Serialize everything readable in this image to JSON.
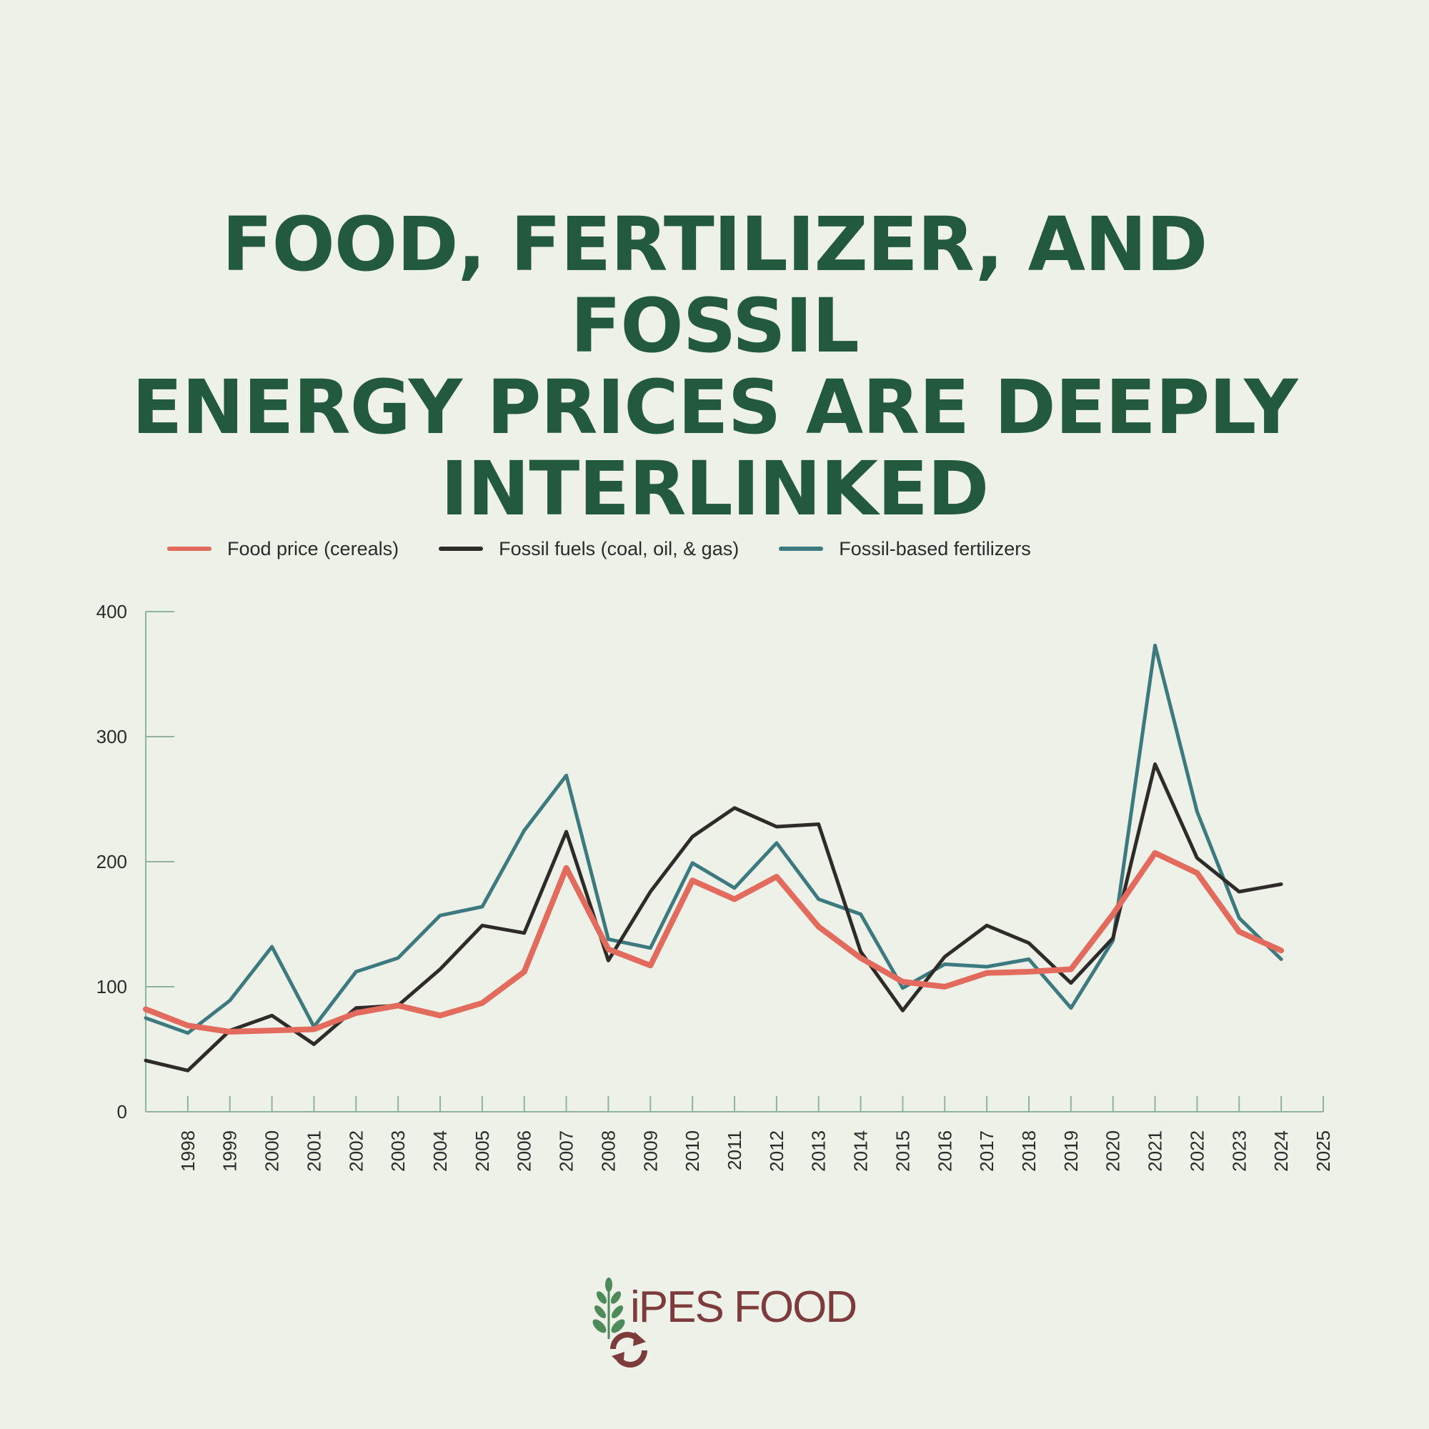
{
  "title_lines": [
    "FOOD, FERTILIZER, AND FOSSIL",
    "ENERGY PRICES ARE DEEPLY",
    "INTERLINKED"
  ],
  "logo_text": "iPES FOOD",
  "chart_data": {
    "type": "line",
    "title": "FOOD, FERTILIZER, AND FOSSIL ENERGY PRICES ARE DEEPLY INTERLINKED",
    "xlabel": "",
    "ylabel": "",
    "ylim": [
      0,
      400
    ],
    "y_ticks": [
      0,
      100,
      200,
      300,
      400
    ],
    "x_ticks": [
      "1998",
      "1999",
      "2000",
      "2001",
      "2002",
      "2003",
      "2004",
      "2005",
      "2006",
      "2007",
      "2008",
      "2009",
      "2010",
      "2011",
      "2012",
      "2013",
      "2014",
      "2015",
      "2016",
      "2017",
      "2018",
      "2019",
      "2020",
      "2021",
      "2022",
      "2023",
      "2024",
      "2025"
    ],
    "x_range": [
      1997,
      2025
    ],
    "grid": false,
    "legend_position": "top-left",
    "series": [
      {
        "name": "Food price (cereals)",
        "color": "#e36b5e",
        "points": [
          [
            1997,
            82
          ],
          [
            1998,
            69
          ],
          [
            1999,
            64
          ],
          [
            2000,
            65
          ],
          [
            2001,
            66
          ],
          [
            2002,
            79
          ],
          [
            2003,
            85
          ],
          [
            2004,
            77
          ],
          [
            2005,
            87
          ],
          [
            2006,
            112
          ],
          [
            2007,
            195
          ],
          [
            2008,
            130
          ],
          [
            2009,
            117
          ],
          [
            2010,
            185
          ],
          [
            2011,
            170
          ],
          [
            2012,
            188
          ],
          [
            2013,
            148
          ],
          [
            2014,
            123
          ],
          [
            2015,
            104
          ],
          [
            2016,
            100
          ],
          [
            2017,
            111
          ],
          [
            2018,
            112
          ],
          [
            2019,
            114
          ],
          [
            2020,
            158
          ],
          [
            2021,
            207
          ],
          [
            2022,
            191
          ],
          [
            2023,
            144
          ],
          [
            2024,
            129
          ]
        ]
      },
      {
        "name": "Fossil fuels (coal, oil, & gas)",
        "color": "#2e2b29",
        "points": [
          [
            1997,
            41
          ],
          [
            1998,
            33
          ],
          [
            1999,
            65
          ],
          [
            2000,
            77
          ],
          [
            2001,
            54
          ],
          [
            2002,
            83
          ],
          [
            2003,
            85
          ],
          [
            2004,
            114
          ],
          [
            2005,
            149
          ],
          [
            2006,
            143
          ],
          [
            2007,
            224
          ],
          [
            2008,
            121
          ],
          [
            2009,
            176
          ],
          [
            2010,
            220
          ],
          [
            2011,
            243
          ],
          [
            2012,
            228
          ],
          [
            2013,
            230
          ],
          [
            2014,
            128
          ],
          [
            2015,
            81
          ],
          [
            2016,
            124
          ],
          [
            2017,
            149
          ],
          [
            2018,
            135
          ],
          [
            2019,
            103
          ],
          [
            2020,
            139
          ],
          [
            2021,
            278
          ],
          [
            2022,
            203
          ],
          [
            2023,
            176
          ],
          [
            2024,
            182
          ]
        ]
      },
      {
        "name": "Fossil-based fertilizers",
        "color": "#3c7a80",
        "points": [
          [
            1997,
            75
          ],
          [
            1998,
            63
          ],
          [
            1999,
            89
          ],
          [
            2000,
            132
          ],
          [
            2001,
            68
          ],
          [
            2002,
            112
          ],
          [
            2003,
            123
          ],
          [
            2004,
            157
          ],
          [
            2005,
            164
          ],
          [
            2006,
            225
          ],
          [
            2007,
            269
          ],
          [
            2008,
            138
          ],
          [
            2009,
            131
          ],
          [
            2010,
            199
          ],
          [
            2011,
            179
          ],
          [
            2012,
            215
          ],
          [
            2013,
            170
          ],
          [
            2014,
            158
          ],
          [
            2015,
            99
          ],
          [
            2016,
            118
          ],
          [
            2017,
            116
          ],
          [
            2018,
            122
          ],
          [
            2019,
            83
          ],
          [
            2020,
            137
          ],
          [
            2021,
            373
          ],
          [
            2022,
            240
          ],
          [
            2023,
            155
          ],
          [
            2024,
            122
          ]
        ]
      }
    ]
  }
}
